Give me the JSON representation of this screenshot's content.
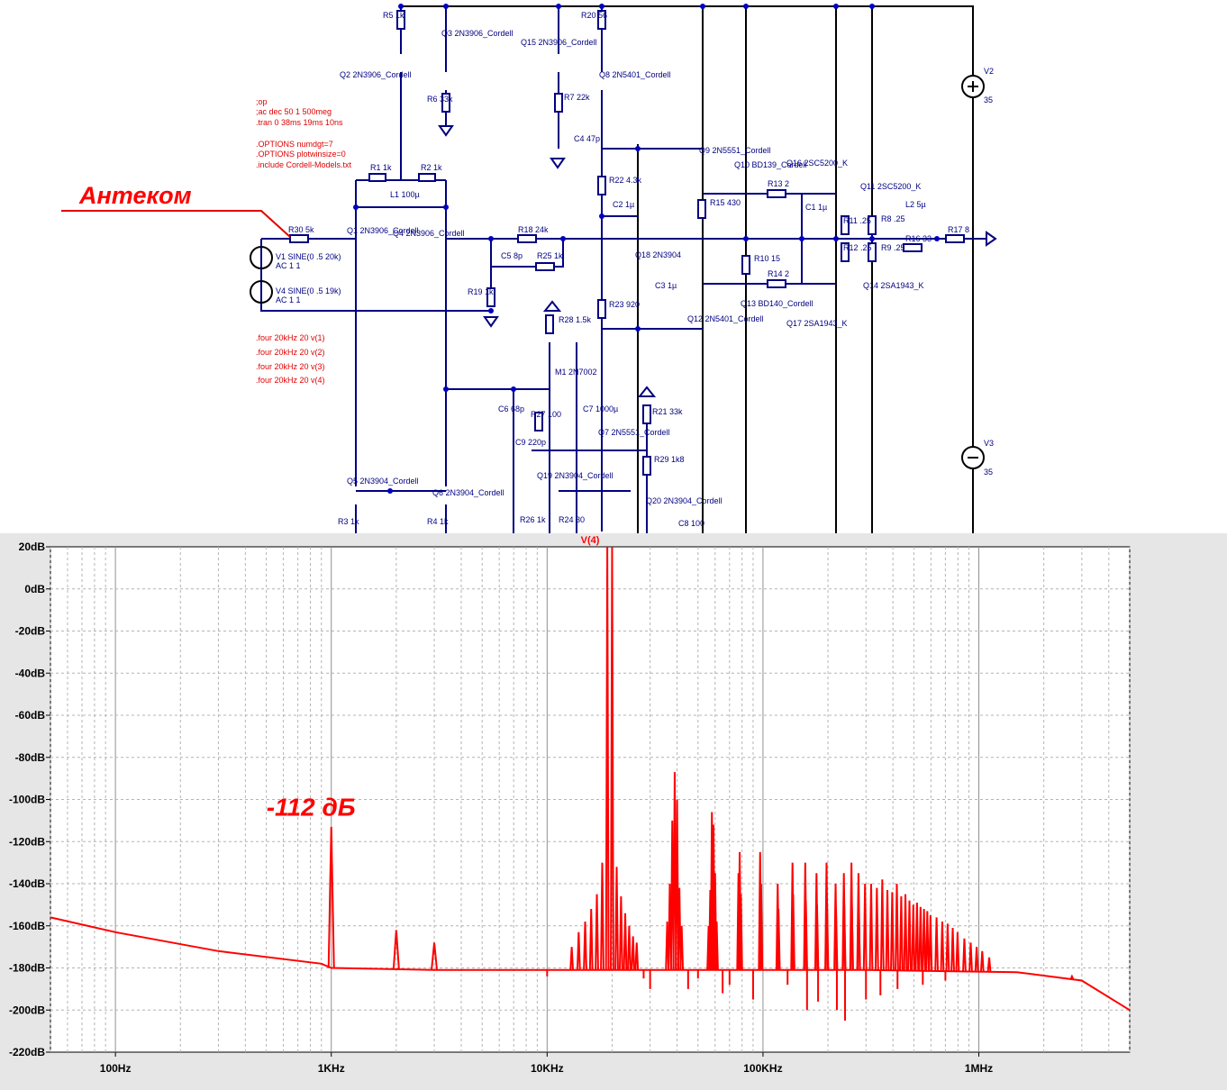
{
  "schematic": {
    "annotation_label": "Антеком",
    "directives": [
      ";op",
      ";ac dec 50 1 500meg",
      ".tran 0 38ms 19ms 10ns",
      ".OPTIONS numdgt=7",
      ".OPTIONS plotwinsize=0",
      ".include Cordell-Models.txt"
    ],
    "four_directives": [
      ".four 20kHz 20 v(1)",
      ".four 20kHz 20 v(2)",
      ".four 20kHz 20 v(3)",
      ".four 20kHz 20 v(4)"
    ],
    "components": [
      {
        "ref": "R5",
        "value": "1k"
      },
      {
        "ref": "Q3",
        "value": "2N3906_Cordell"
      },
      {
        "ref": "Q15",
        "value": "2N3906_Cordell"
      },
      {
        "ref": "R20",
        "value": "56"
      },
      {
        "ref": "Q2",
        "value": "2N3906_Cordell"
      },
      {
        "ref": "Q8",
        "value": "2N5401_Cordell"
      },
      {
        "ref": "R6",
        "value": "33k"
      },
      {
        "ref": "R7",
        "value": "22k"
      },
      {
        "ref": "C4",
        "value": "47p"
      },
      {
        "ref": "Q9",
        "value": "2N5551_Cordell"
      },
      {
        "ref": "Q10",
        "value": "BD139_Cordell"
      },
      {
        "ref": "Q16",
        "value": "2SC5200_K"
      },
      {
        "ref": "Q11",
        "value": "2SC5200_K"
      },
      {
        "ref": "R1",
        "value": "1k"
      },
      {
        "ref": "R2",
        "value": "1k"
      },
      {
        "ref": "L1",
        "value": "100µ"
      },
      {
        "ref": "R22",
        "value": "4.3k"
      },
      {
        "ref": "R13",
        "value": "2"
      },
      {
        "ref": "C1",
        "value": "1µ"
      },
      {
        "ref": "R11",
        "value": ".25"
      },
      {
        "ref": "R8",
        "value": ".25"
      },
      {
        "ref": "L2",
        "value": "5µ"
      },
      {
        "ref": "R30",
        "value": "5k"
      },
      {
        "ref": "Q1",
        "value": "2N3906_Cordell"
      },
      {
        "ref": "Q4",
        "value": "2N3906_Cordell"
      },
      {
        "ref": "R18",
        "value": "24k"
      },
      {
        "ref": "C2",
        "value": "1µ"
      },
      {
        "ref": "R15",
        "value": "430"
      },
      {
        "ref": "R12",
        "value": ".25"
      },
      {
        "ref": "R9",
        "value": ".25"
      },
      {
        "ref": "R16",
        "value": "33"
      },
      {
        "ref": "R17",
        "value": "8"
      },
      {
        "ref": "V1",
        "value": "SINE(0 .5 20k)"
      },
      {
        "ref": "V1_ac",
        "value": "AC 1 1"
      },
      {
        "ref": "V4",
        "value": "SINE(0 .5 19k)"
      },
      {
        "ref": "V4_ac",
        "value": "AC 1 1"
      },
      {
        "ref": "C5",
        "value": "8p"
      },
      {
        "ref": "R25",
        "value": "1k"
      },
      {
        "ref": "Q18",
        "value": "2N3904"
      },
      {
        "ref": "R10",
        "value": "15"
      },
      {
        "ref": "R14",
        "value": "2"
      },
      {
        "ref": "Q14",
        "value": "2SA1943_K"
      },
      {
        "ref": "R19",
        "value": "1k"
      },
      {
        "ref": "C3",
        "value": "1µ"
      },
      {
        "ref": "R23",
        "value": "920"
      },
      {
        "ref": "Q13",
        "value": "BD140_Cordell"
      },
      {
        "ref": "Q17",
        "value": "2SA1943_K"
      },
      {
        "ref": "Q12",
        "value": "2N5401_Cordell"
      },
      {
        "ref": "R28",
        "value": "1.5k"
      },
      {
        "ref": "M1",
        "value": "2N7002"
      },
      {
        "ref": "C6",
        "value": "68p"
      },
      {
        "ref": "R27",
        "value": "100"
      },
      {
        "ref": "C7",
        "value": "1000µ"
      },
      {
        "ref": "R21",
        "value": "33k"
      },
      {
        "ref": "Q7",
        "value": "2N5551_Cordell"
      },
      {
        "ref": "C9",
        "value": "220p"
      },
      {
        "ref": "R29",
        "value": "1k8"
      },
      {
        "ref": "Q5",
        "value": "2N3904_Cordell"
      },
      {
        "ref": "Q6",
        "value": "2N3904_Cordell"
      },
      {
        "ref": "Q19",
        "value": "2N3904_Cordell"
      },
      {
        "ref": "Q20",
        "value": "2N3904_Cordell"
      },
      {
        "ref": "R3",
        "value": "1k"
      },
      {
        "ref": "R4",
        "value": "1k"
      },
      {
        "ref": "R26",
        "value": "1k"
      },
      {
        "ref": "R24",
        "value": "30"
      },
      {
        "ref": "C8",
        "value": "100"
      },
      {
        "ref": "V2",
        "value": "35"
      },
      {
        "ref": "V3",
        "value": "35"
      }
    ]
  },
  "chart_data": {
    "type": "line",
    "title": "",
    "series": [
      {
        "name": "V(4)",
        "color": "#ff0000"
      }
    ],
    "x_scale": "log",
    "xlim": [
      50,
      5000000
    ],
    "ylim": [
      -220,
      20
    ],
    "x_ticks": [
      {
        "value": 100,
        "label": "100Hz"
      },
      {
        "value": 1000,
        "label": "1KHz"
      },
      {
        "value": 10000,
        "label": "10KHz"
      },
      {
        "value": 100000,
        "label": "100KHz"
      },
      {
        "value": 1000000,
        "label": "1MHz"
      }
    ],
    "y_ticks": [
      {
        "value": 20,
        "label": "20dB"
      },
      {
        "value": 0,
        "label": "0dB"
      },
      {
        "value": -20,
        "label": "-20dB"
      },
      {
        "value": -40,
        "label": "-40dB"
      },
      {
        "value": -60,
        "label": "-60dB"
      },
      {
        "value": -80,
        "label": "-80dB"
      },
      {
        "value": -100,
        "label": "-100dB"
      },
      {
        "value": -120,
        "label": "-120dB"
      },
      {
        "value": -140,
        "label": "-140dB"
      },
      {
        "value": -160,
        "label": "-160dB"
      },
      {
        "value": -180,
        "label": "-180dB"
      },
      {
        "value": -200,
        "label": "-200dB"
      },
      {
        "value": -220,
        "label": "-220dB"
      }
    ],
    "grid": true,
    "floor": [
      [
        50,
        -156
      ],
      [
        100,
        -163
      ],
      [
        300,
        -172
      ],
      [
        900,
        -178
      ],
      [
        1000,
        -180
      ],
      [
        3000,
        -181
      ],
      [
        10000,
        -181
      ],
      [
        20000,
        -181
      ],
      [
        100000,
        -181
      ],
      [
        300000,
        -181
      ],
      [
        1500000,
        -182
      ],
      [
        3000000,
        -186
      ],
      [
        5000000,
        -200
      ]
    ],
    "peaks": [
      {
        "x": 1000,
        "y": -113
      },
      {
        "x": 2000,
        "y": -162
      },
      {
        "x": 3000,
        "y": -168
      },
      {
        "x": 13000,
        "y": -170
      },
      {
        "x": 14000,
        "y": -163
      },
      {
        "x": 15000,
        "y": -158
      },
      {
        "x": 16000,
        "y": -152
      },
      {
        "x": 17000,
        "y": -145
      },
      {
        "x": 18000,
        "y": -130
      },
      {
        "x": 19000,
        "y": 20
      },
      {
        "x": 20000,
        "y": 20
      },
      {
        "x": 21000,
        "y": -132
      },
      {
        "x": 22000,
        "y": -146
      },
      {
        "x": 23000,
        "y": -154
      },
      {
        "x": 24000,
        "y": -160
      },
      {
        "x": 25000,
        "y": -165
      },
      {
        "x": 26000,
        "y": -168
      },
      {
        "x": 36000,
        "y": -158
      },
      {
        "x": 37000,
        "y": -140
      },
      {
        "x": 38000,
        "y": -110
      },
      {
        "x": 39000,
        "y": -87
      },
      {
        "x": 40000,
        "y": -100
      },
      {
        "x": 41000,
        "y": -142
      },
      {
        "x": 42000,
        "y": -160
      },
      {
        "x": 56000,
        "y": -160
      },
      {
        "x": 57000,
        "y": -143
      },
      {
        "x": 58000,
        "y": -106
      },
      {
        "x": 59000,
        "y": -112
      },
      {
        "x": 60000,
        "y": -135
      },
      {
        "x": 61000,
        "y": -158
      },
      {
        "x": 77000,
        "y": -135
      },
      {
        "x": 78000,
        "y": -125
      },
      {
        "x": 79000,
        "y": -145
      },
      {
        "x": 97000,
        "y": -125
      },
      {
        "x": 98000,
        "y": -140
      },
      {
        "x": 117000,
        "y": -140
      },
      {
        "x": 118000,
        "y": -152
      },
      {
        "x": 137000,
        "y": -130
      },
      {
        "x": 138000,
        "y": -145
      },
      {
        "x": 157000,
        "y": -130
      },
      {
        "x": 158000,
        "y": -148
      },
      {
        "x": 177000,
        "y": -135
      },
      {
        "x": 178000,
        "y": -150
      },
      {
        "x": 197000,
        "y": -130
      },
      {
        "x": 198000,
        "y": -148
      },
      {
        "x": 217000,
        "y": -140
      },
      {
        "x": 218000,
        "y": -152
      },
      {
        "x": 237000,
        "y": -135
      },
      {
        "x": 238000,
        "y": -150
      },
      {
        "x": 257000,
        "y": -130
      },
      {
        "x": 258000,
        "y": -150
      },
      {
        "x": 277000,
        "y": -135
      },
      {
        "x": 278000,
        "y": -152
      },
      {
        "x": 297000,
        "y": -140
      },
      {
        "x": 317000,
        "y": -140
      },
      {
        "x": 337000,
        "y": -142
      },
      {
        "x": 357000,
        "y": -138
      },
      {
        "x": 377000,
        "y": -143
      },
      {
        "x": 397000,
        "y": -144
      },
      {
        "x": 417000,
        "y": -140
      },
      {
        "x": 437000,
        "y": -146
      },
      {
        "x": 457000,
        "y": -145
      },
      {
        "x": 477000,
        "y": -148
      },
      {
        "x": 497000,
        "y": -150
      },
      {
        "x": 517000,
        "y": -149
      },
      {
        "x": 537000,
        "y": -151
      },
      {
        "x": 557000,
        "y": -152
      },
      {
        "x": 577000,
        "y": -153
      },
      {
        "x": 597000,
        "y": -155
      },
      {
        "x": 637000,
        "y": -156
      },
      {
        "x": 677000,
        "y": -158
      },
      {
        "x": 717000,
        "y": -159
      },
      {
        "x": 757000,
        "y": -161
      },
      {
        "x": 797000,
        "y": -163
      },
      {
        "x": 857000,
        "y": -166
      },
      {
        "x": 917000,
        "y": -168
      },
      {
        "x": 977000,
        "y": -170
      },
      {
        "x": 1037000,
        "y": -172
      },
      {
        "x": 1117000,
        "y": -175
      },
      {
        "x": 2700000,
        "y": -184
      }
    ],
    "dips": [
      {
        "x": 10000,
        "y": -184
      },
      {
        "x": 28000,
        "y": -185
      },
      {
        "x": 30000,
        "y": -190
      },
      {
        "x": 45000,
        "y": -190
      },
      {
        "x": 50000,
        "y": -185
      },
      {
        "x": 65000,
        "y": -192
      },
      {
        "x": 70000,
        "y": -188
      },
      {
        "x": 90000,
        "y": -195
      },
      {
        "x": 130000,
        "y": -188
      },
      {
        "x": 160000,
        "y": -200
      },
      {
        "x": 180000,
        "y": -196
      },
      {
        "x": 220000,
        "y": -200
      },
      {
        "x": 240000,
        "y": -205
      },
      {
        "x": 300000,
        "y": -195
      },
      {
        "x": 350000,
        "y": -193
      },
      {
        "x": 420000,
        "y": -190
      },
      {
        "x": 550000,
        "y": -188
      },
      {
        "x": 700000,
        "y": -186
      }
    ],
    "annotations": [
      {
        "text": "-112 дБ",
        "x": 1000,
        "y": -112
      }
    ]
  }
}
